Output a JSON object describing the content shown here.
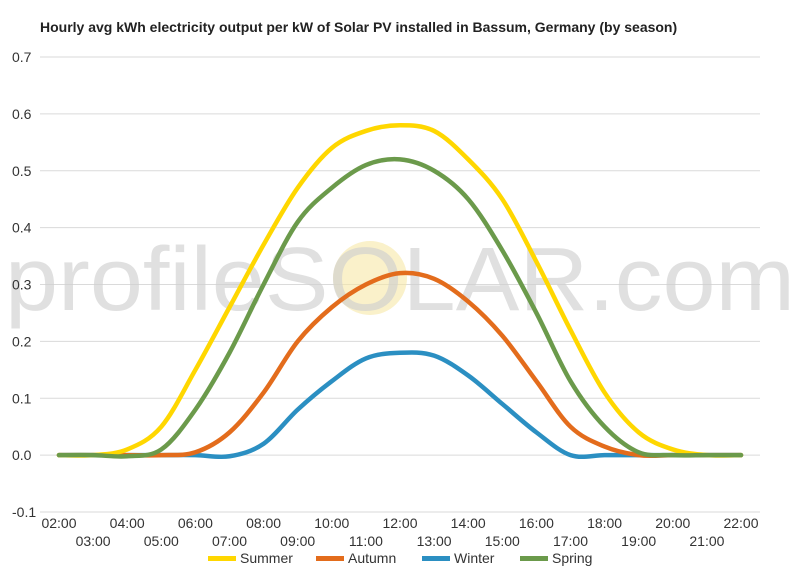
{
  "chart_data": {
    "type": "line",
    "title": "Hourly avg kWh electricity output per kW of Solar PV installed in Bassum, Germany (by season)",
    "watermark": "profileSOLAR.com",
    "xlabel": "",
    "ylabel": "",
    "ylim": [
      -0.1,
      0.7
    ],
    "yticks": [
      "-0.1",
      "0.0",
      "0.1",
      "0.2",
      "0.3",
      "0.4",
      "0.5",
      "0.6",
      "0.7"
    ],
    "grid": true,
    "legend_position": "bottom",
    "categories": [
      "02:00",
      "03:00",
      "04:00",
      "05:00",
      "06:00",
      "07:00",
      "08:00",
      "09:00",
      "10:00",
      "11:00",
      "12:00",
      "13:00",
      "14:00",
      "15:00",
      "16:00",
      "17:00",
      "18:00",
      "19:00",
      "20:00",
      "21:00",
      "22:00"
    ],
    "series": [
      {
        "name": "Summer",
        "color": "#FFD700",
        "values": [
          0,
          0,
          0.01,
          0.05,
          0.15,
          0.26,
          0.37,
          0.47,
          0.54,
          0.57,
          0.58,
          0.57,
          0.52,
          0.45,
          0.34,
          0.22,
          0.11,
          0.04,
          0.01,
          0,
          0
        ]
      },
      {
        "name": "Autumn",
        "color": "#E36C1C",
        "values": [
          0,
          0,
          0,
          0,
          0.005,
          0.04,
          0.11,
          0.2,
          0.26,
          0.3,
          0.32,
          0.31,
          0.27,
          0.21,
          0.13,
          0.05,
          0.015,
          0,
          0,
          0,
          0
        ]
      },
      {
        "name": "Winter",
        "color": "#2B8FC2",
        "values": [
          0,
          0,
          0,
          0,
          0,
          -0.002,
          0.02,
          0.08,
          0.13,
          0.17,
          0.18,
          0.175,
          0.14,
          0.09,
          0.04,
          0,
          0,
          0,
          0,
          0,
          0
        ]
      },
      {
        "name": "Spring",
        "color": "#6B9A4B",
        "values": [
          0,
          0,
          -0.002,
          0.01,
          0.08,
          0.18,
          0.3,
          0.41,
          0.47,
          0.51,
          0.52,
          0.5,
          0.45,
          0.36,
          0.25,
          0.13,
          0.05,
          0.005,
          0,
          0,
          0
        ]
      }
    ]
  }
}
